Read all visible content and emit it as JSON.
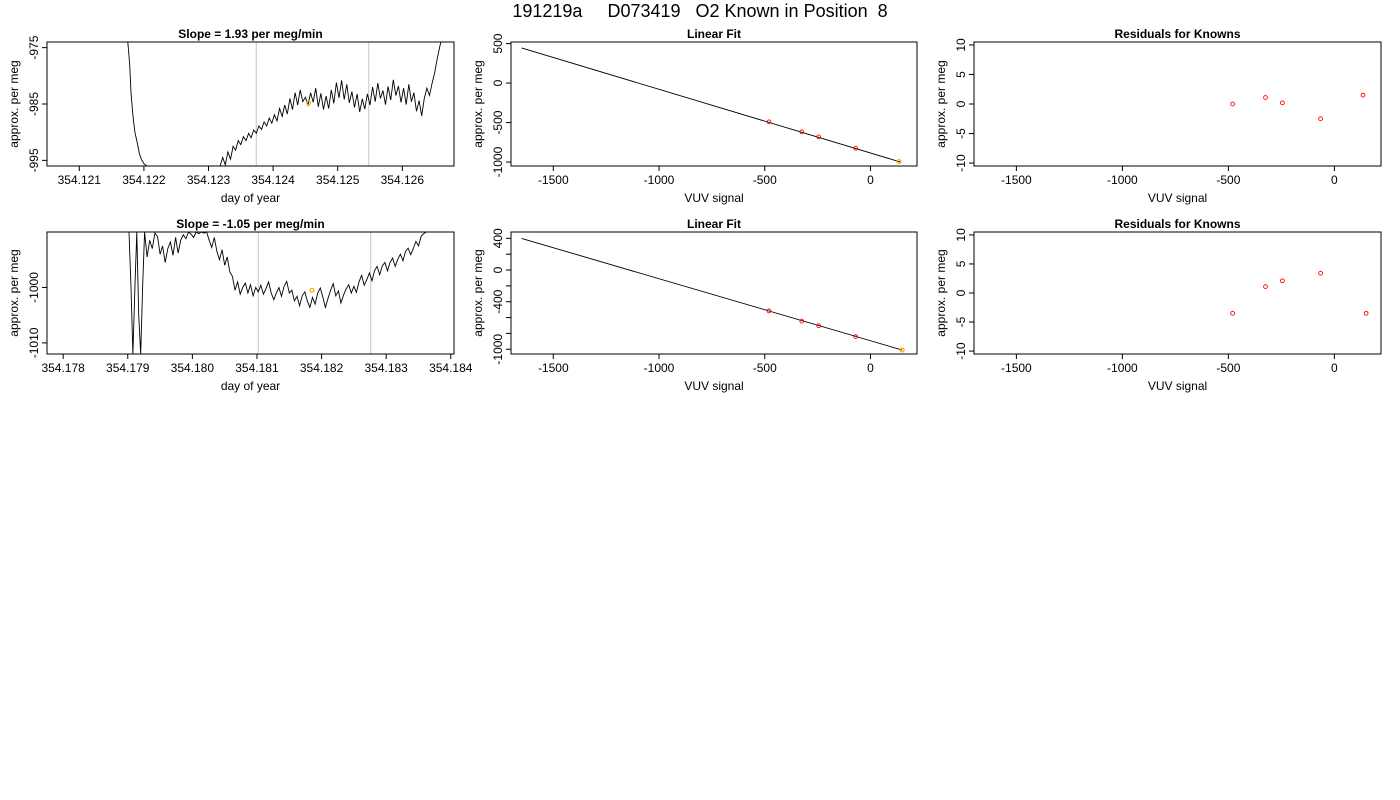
{
  "figure": {
    "title": "191219a     D073419   O2 Known in Position  8"
  },
  "colors": {
    "trace": "#000000",
    "point": "#ff0000",
    "highlight": "#ffa500",
    "marker_line": "#cfcfcf",
    "frame": "#000000"
  },
  "chart_data": [
    {
      "type": "line",
      "title": "Slope =  1.93  per meg/min",
      "xlabel": "day of year",
      "ylabel": "approx. per meg",
      "xlim": [
        354.1205,
        354.1268
      ],
      "ylim": [
        -996,
        -974
      ],
      "xticks": [
        354.121,
        354.122,
        354.123,
        354.124,
        354.125,
        354.126
      ],
      "xtick_labels": [
        "354.121",
        "354.122",
        "354.123",
        "354.124",
        "354.125",
        "354.126"
      ],
      "yticks": [
        -975,
        -985,
        -995
      ],
      "ytick_labels": [
        "-975",
        "-985",
        "-995"
      ],
      "vertical_lines": [
        354.12374,
        354.12548
      ],
      "highlight_point": {
        "x": 354.12455,
        "y": -984.8
      },
      "series": [
        {
          "x": [
            354.12175,
            354.12178,
            354.1218,
            354.12183,
            354.12186,
            354.1219,
            354.12193,
            354.12196,
            354.122,
            354.12205,
            354.12318,
            354.12322,
            354.12326,
            354.1233,
            354.12334,
            354.12338,
            354.12342,
            354.12346,
            354.1235,
            354.12354,
            354.12358,
            354.12362,
            354.12366,
            354.1237,
            354.12374,
            354.12378,
            354.12382,
            354.12386,
            354.1239,
            354.12394,
            354.12398,
            354.12402,
            354.12406,
            354.1241,
            354.12414,
            354.12418,
            354.12422,
            354.12426,
            354.1243,
            354.12434,
            354.12438,
            354.12442,
            354.12446,
            354.1245,
            354.12454,
            354.12458,
            354.12462,
            354.12466,
            354.1247,
            354.12474,
            354.12478,
            354.12482,
            354.12486,
            354.1249,
            354.12494,
            354.12498,
            354.12502,
            354.12506,
            354.1251,
            354.12514,
            354.12518,
            354.12522,
            354.12526,
            354.1253,
            354.12534,
            354.12538,
            354.12542,
            354.12546,
            354.1255,
            354.12554,
            354.12558,
            354.12562,
            354.12566,
            354.1257,
            354.12574,
            354.12578,
            354.12582,
            354.12586,
            354.1259,
            354.12594,
            354.12598,
            354.12602,
            354.12606,
            354.1261,
            354.12614,
            354.12618,
            354.12622,
            354.12626,
            354.1263,
            354.12634,
            354.12638,
            354.12642,
            354.12646,
            354.1265,
            354.12654,
            354.12658,
            354.12662
          ],
          "y": [
            -974.0,
            -978.0,
            -983.0,
            -987.0,
            -990.0,
            -992.0,
            -993.8,
            -994.8,
            -995.6,
            -996.0,
            -996.0,
            -994.5,
            -995.8,
            -993.5,
            -994.8,
            -992.5,
            -993.2,
            -991.5,
            -992.2,
            -990.8,
            -991.5,
            -990.2,
            -991.0,
            -989.6,
            -990.2,
            -988.9,
            -989.5,
            -988.2,
            -988.9,
            -987.5,
            -988.4,
            -986.9,
            -988.0,
            -985.8,
            -987.2,
            -985.2,
            -986.8,
            -984.0,
            -986.0,
            -983.0,
            -985.2,
            -982.5,
            -984.6,
            -983.8,
            -985.2,
            -983.0,
            -984.7,
            -982.2,
            -985.5,
            -983.1,
            -986.0,
            -983.6,
            -985.8,
            -982.5,
            -984.9,
            -981.2,
            -983.9,
            -980.8,
            -984.2,
            -981.5,
            -984.8,
            -982.8,
            -985.6,
            -983.2,
            -986.4,
            -984.1,
            -985.9,
            -983.2,
            -985.2,
            -982.0,
            -984.6,
            -981.3,
            -984.0,
            -982.6,
            -985.1,
            -981.9,
            -984.3,
            -980.7,
            -983.5,
            -981.8,
            -984.7,
            -982.2,
            -985.1,
            -981.5,
            -984.6,
            -983.0,
            -986.3,
            -984.4,
            -987.1,
            -984.0,
            -982.2,
            -983.5,
            -981.4,
            -979.5,
            -977.0,
            -974.8,
            -973.0
          ]
        }
      ]
    },
    {
      "type": "scatter",
      "title": "Linear Fit",
      "xlabel": "VUV signal",
      "ylabel": "approx. per meg",
      "xlim": [
        -1700,
        220
      ],
      "ylim": [
        -1050,
        520
      ],
      "xticks": [
        -1500,
        -1000,
        -500,
        0
      ],
      "xtick_labels": [
        "-1500",
        "-1000",
        "-500",
        "0"
      ],
      "yticks": [
        500,
        0,
        -500,
        -1000
      ],
      "ytick_labels": [
        "500",
        "0",
        "-500",
        "-1000"
      ],
      "fit_line": {
        "x": [
          -1650,
          140
        ],
        "y": [
          445,
          -998
        ]
      },
      "points": {
        "x": [
          -480,
          -325,
          -245,
          -70
        ],
        "y": [
          -491,
          -617,
          -681,
          -825
        ]
      },
      "highlight_point": {
        "x": 135,
        "y": -994
      }
    },
    {
      "type": "scatter",
      "title": "Residuals for Knowns",
      "xlabel": "VUV signal",
      "ylabel": "approx. per meg",
      "xlim": [
        -1700,
        220
      ],
      "ylim": [
        -10.5,
        10.5
      ],
      "xticks": [
        -1500,
        -1000,
        -500,
        0
      ],
      "xtick_labels": [
        "-1500",
        "-1000",
        "-500",
        "0"
      ],
      "yticks": [
        10,
        5,
        0,
        -5,
        -10
      ],
      "ytick_labels": [
        "10",
        "5",
        "0",
        "-5",
        "-10"
      ],
      "points": {
        "x": [
          -480,
          -325,
          -245,
          -65,
          135
        ],
        "y": [
          0.0,
          1.1,
          0.2,
          -2.5,
          1.5
        ]
      }
    },
    {
      "type": "line",
      "title": "Slope =  -1.05  per meg/min",
      "xlabel": "day of year",
      "ylabel": "approx. per meg",
      "xlim": [
        354.17775,
        354.18405
      ],
      "ylim": [
        -1012,
        -990
      ],
      "xticks": [
        354.178,
        354.179,
        354.18,
        354.181,
        354.182,
        354.183,
        354.184
      ],
      "xtick_labels": [
        "354.178",
        "354.179",
        "354.180",
        "354.181",
        "354.182",
        "354.183",
        "354.184"
      ],
      "yticks": [
        -1000,
        -1010
      ],
      "ytick_labels": [
        "-1000",
        "-1010"
      ],
      "vertical_lines": [
        354.18102,
        354.18276
      ],
      "highlight_point": {
        "x": 354.18185,
        "y": -1000.5
      },
      "series": [
        {
          "x": [
            354.17902,
            354.17905,
            354.17908,
            354.17911,
            354.17914,
            354.17917,
            354.1792,
            354.17923,
            354.17926,
            354.1793,
            354.17934,
            354.17938,
            354.17942,
            354.17946,
            354.1795,
            354.17954,
            354.17958,
            354.17962,
            354.17966,
            354.1797,
            354.17974,
            354.17978,
            354.17982,
            354.17986,
            354.1799,
            354.17994,
            354.17998,
            354.18002,
            354.18006,
            354.1801,
            354.18014,
            354.18018,
            354.18022,
            354.18026,
            354.1803,
            354.18034,
            354.18038,
            354.18042,
            354.18046,
            354.1805,
            354.18054,
            354.18058,
            354.18062,
            354.18066,
            354.1807,
            354.18074,
            354.18078,
            354.18082,
            354.18086,
            354.1809,
            354.18094,
            354.18098,
            354.18102,
            354.18106,
            354.1811,
            354.18114,
            354.18118,
            354.18122,
            354.18126,
            354.1813,
            354.18134,
            354.18138,
            354.18142,
            354.18146,
            354.1815,
            354.18154,
            354.18158,
            354.18162,
            354.18166,
            354.1817,
            354.18174,
            354.18178,
            354.18182,
            354.18186,
            354.1819,
            354.18194,
            354.18198,
            354.18202,
            354.18206,
            354.1821,
            354.18214,
            354.18218,
            354.18222,
            354.18226,
            354.1823,
            354.18234,
            354.18238,
            354.18242,
            354.18246,
            354.1825,
            354.18254,
            354.18258,
            354.18262,
            354.18266,
            354.1827,
            354.18274,
            354.18278,
            354.18282,
            354.18286,
            354.1829,
            354.18294,
            354.18298,
            354.18302,
            354.18306,
            354.1831,
            354.18314,
            354.18318,
            354.18322,
            354.18326,
            354.1833,
            354.18334,
            354.18338,
            354.18342,
            354.18346,
            354.1835,
            354.18354,
            354.18358,
            354.18362
          ],
          "y": [
            -990.0,
            -1000.0,
            -1012.0,
            -1000.0,
            -990.0,
            -1005.0,
            -1012.0,
            -1000.0,
            -990.0,
            -994.5,
            -991.5,
            -993.0,
            -990.2,
            -990.8,
            -994.0,
            -992.5,
            -995.5,
            -993.0,
            -991.8,
            -994.2,
            -991.0,
            -993.8,
            -991.5,
            -990.5,
            -991.2,
            -990.0,
            -990.4,
            -991.0,
            -990.0,
            -990.3,
            -990.0,
            -990.2,
            -990.0,
            -991.5,
            -992.8,
            -991.0,
            -993.5,
            -995.0,
            -993.2,
            -996.0,
            -994.5,
            -997.2,
            -998.0,
            -1000.5,
            -999.0,
            -1001.2,
            -1000.0,
            -999.2,
            -1001.0,
            -999.5,
            -1001.5,
            -1000.0,
            -1000.8,
            -999.6,
            -1001.2,
            -1000.2,
            -999.0,
            -1001.0,
            -1002.2,
            -1001.0,
            -1000.0,
            -1001.6,
            -999.8,
            -998.9,
            -1001.0,
            -1000.5,
            -1002.4,
            -1001.6,
            -1003.3,
            -1001.5,
            -1000.8,
            -1002.5,
            -1003.6,
            -1001.8,
            -1003.0,
            -1001.0,
            -1000.1,
            -1001.8,
            -1003.6,
            -1002.0,
            -1000.5,
            -999.3,
            -1001.5,
            -1000.6,
            -1002.8,
            -1001.4,
            -1000.3,
            -999.5,
            -1001.0,
            -999.8,
            -1000.9,
            -999.0,
            -997.8,
            -999.6,
            -998.6,
            -997.4,
            -998.8,
            -997.0,
            -996.2,
            -997.7,
            -996.1,
            -995.5,
            -997.0,
            -995.5,
            -994.7,
            -996.2,
            -994.9,
            -994.0,
            -995.2,
            -993.5,
            -992.9,
            -994.1,
            -993.0,
            -991.7,
            -992.5,
            -990.8,
            -990.3,
            -990.0
          ]
        }
      ]
    },
    {
      "type": "scatter",
      "title": "Linear Fit",
      "xlabel": "VUV signal",
      "ylabel": "approx. per meg",
      "xlim": [
        -1700,
        220
      ],
      "ylim": [
        -1060,
        480
      ],
      "xticks": [
        -1500,
        -1000,
        -500,
        0
      ],
      "xtick_labels": [
        "-1500",
        "-1000",
        "-500",
        "0"
      ],
      "yticks": [
        400,
        0,
        -400,
        -1000
      ],
      "ytick_labels": [
        "400",
        "0",
        "-400",
        "-1000"
      ],
      "extra_yticks": [
        200,
        -200,
        -600,
        -800
      ],
      "fit_line": {
        "x": [
          -1650,
          150
        ],
        "y": [
          399,
          -1010
        ]
      },
      "points": {
        "x": [
          -480,
          -325,
          -245,
          -70
        ],
        "y": [
          -516,
          -645,
          -703,
          -841
        ]
      },
      "highlight_point": {
        "x": 150,
        "y": -1010
      }
    },
    {
      "type": "scatter",
      "title": "Residuals for Knowns",
      "xlabel": "VUV signal",
      "ylabel": "approx. per meg",
      "xlim": [
        -1700,
        220
      ],
      "ylim": [
        -10.5,
        10.5
      ],
      "xticks": [
        -1500,
        -1000,
        -500,
        0
      ],
      "xtick_labels": [
        "-1500",
        "-1000",
        "-500",
        "0"
      ],
      "yticks": [
        10,
        5,
        0,
        -5,
        -10
      ],
      "ytick_labels": [
        "10",
        "5",
        "0",
        "-5",
        "-10"
      ],
      "points": {
        "x": [
          -480,
          -325,
          -245,
          -65,
          150
        ],
        "y": [
          -3.5,
          1.1,
          2.1,
          3.4,
          -3.5
        ]
      }
    }
  ]
}
